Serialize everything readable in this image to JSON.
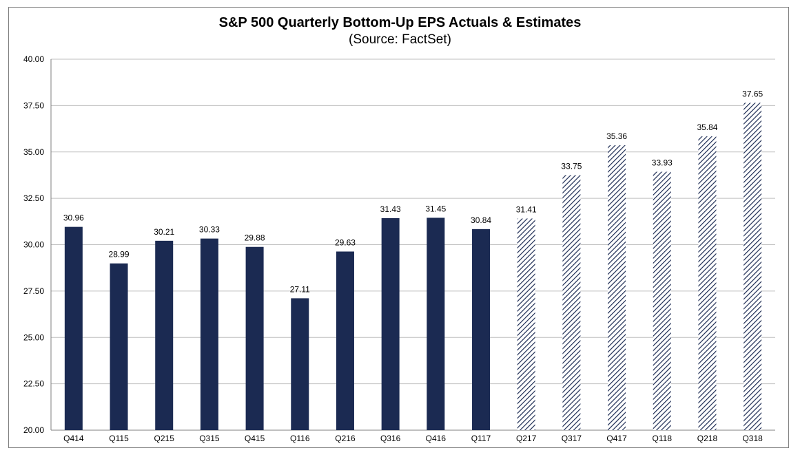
{
  "chart_data": {
    "type": "bar",
    "title": "S&P 500 Quarterly Bottom-Up  EPS Actuals & Estimates",
    "subtitle": "(Source: FactSet)",
    "xlabel": "",
    "ylabel": "",
    "ylim": [
      20,
      40
    ],
    "yticks": [
      "20.00",
      "22.50",
      "25.00",
      "27.50",
      "30.00",
      "32.50",
      "35.00",
      "37.50",
      "40.00"
    ],
    "grid": true,
    "categories": [
      "Q414",
      "Q115",
      "Q215",
      "Q315",
      "Q415",
      "Q116",
      "Q216",
      "Q316",
      "Q416",
      "Q117",
      "Q217",
      "Q317",
      "Q417",
      "Q118",
      "Q218",
      "Q318"
    ],
    "values": [
      30.96,
      28.99,
      30.21,
      30.33,
      29.88,
      27.11,
      29.63,
      31.43,
      31.45,
      30.84,
      31.41,
      33.75,
      35.36,
      33.93,
      35.84,
      37.65
    ],
    "value_labels": [
      "30.96",
      "28.99",
      "30.21",
      "30.33",
      "29.88",
      "27.11",
      "29.63",
      "31.43",
      "31.45",
      "30.84",
      "31.41",
      "33.75",
      "35.36",
      "33.93",
      "35.84",
      "37.65"
    ],
    "bar_style": [
      "solid",
      "solid",
      "solid",
      "solid",
      "solid",
      "solid",
      "solid",
      "solid",
      "solid",
      "solid",
      "hatched",
      "hatched",
      "hatched",
      "hatched",
      "hatched",
      "hatched"
    ],
    "colors": {
      "bar": "#1b2a52",
      "grid": "#bfbfbf",
      "axis": "#7f7f7f"
    }
  }
}
